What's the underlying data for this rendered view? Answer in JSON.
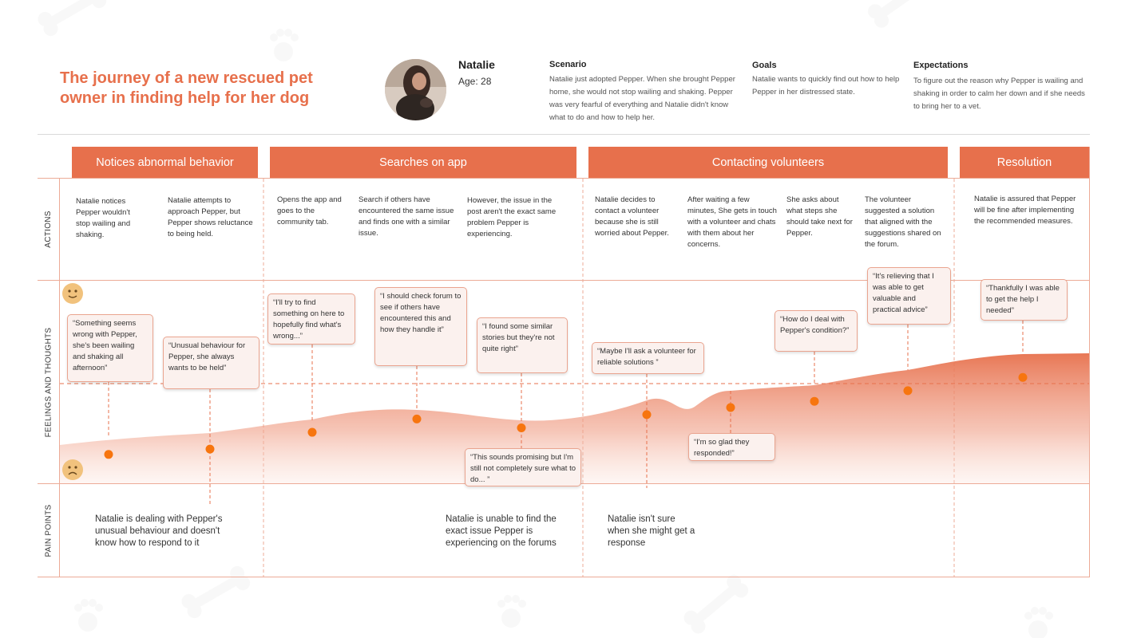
{
  "title": "The journey of a new rescued pet owner in finding help for her dog",
  "persona": {
    "name": "Natalie",
    "age": "Age: 28"
  },
  "scenario": {
    "heading": "Scenario",
    "text": "Natalie just adopted Pepper. When she brought Pepper home, she would not stop wailing and shaking. Pepper was very fearful of everything and Natalie didn't know what to do and how to help her."
  },
  "goals": {
    "heading": "Goals",
    "text": "Natalie wants to quickly find out how to help Pepper in her distressed state."
  },
  "expectations": {
    "heading": "Expectations",
    "text": "To figure out the reason why Pepper is wailing and shaking in order to calm her down and if she needs to bring her to a vet."
  },
  "stages": [
    "Notices abnormal behavior",
    "Searches on app",
    "Contacting volunteers",
    "Resolution"
  ],
  "rows": {
    "actions": "ACTIONS",
    "feelings": "FEELINGS AND THOUGHTS",
    "pain": "PAIN POINTS"
  },
  "actions": [
    "Natalie notices Pepper wouldn't stop wailing and shaking.",
    "Natalie attempts to approach Pepper, but Pepper shows reluctance to being held.",
    "Opens the app and goes to the community tab.",
    "Search if others have encountered the same issue and finds one with a similar issue.",
    "However, the issue in the post aren't the exact same problem Pepper is experiencing.",
    "Natalie decides to contact a volunteer because she is still worried about Pepper.",
    "After waiting a few minutes, She gets in touch with a volunteer and chats with them about her concerns.",
    "She asks about what steps she should take next for Pepper.",
    "The volunteer suggested a solution that aligned with the suggestions shared on the forum.",
    "Natalie is assured that Pepper will be fine after implementing the recommended measures."
  ],
  "thoughts": [
    "“Something seems wrong with Pepper, she's been wailing and shaking all afternoon”",
    "“Unusual behaviour for Pepper, she always wants to be held”",
    "“I'll try to find something on here to hopefully find what's wrong...”",
    "“I should check forum to see if others have encountered this and how they handle it”",
    "“I found some similar stories but they're not quite right”",
    "“This sounds promising but I'm still not completely sure what to do... ”",
    "“Maybe I'll ask a volunteer for reliable solutions ”",
    "“I'm so glad they responded!”",
    "“How do I deal with Pepper's condition?”",
    "“It's relieving that I was able to get valuable and practical advice”",
    "“Thankfully I was able to get the help I needed”"
  ],
  "emotion_levels": [
    0.2,
    0.26,
    0.45,
    0.6,
    0.5,
    0.65,
    0.73,
    0.8,
    0.92,
    1.07
  ],
  "pain_points": [
    "Natalie is dealing with Pepper's unusual behaviour and doesn't know how to respond to it",
    "Natalie is unable to find the exact issue Pepper is experiencing on the forums",
    "Natalie isn't sure when she might get a response"
  ],
  "icons": {
    "happy": "happy-face-icon",
    "sad": "sad-face-icon",
    "background": "bone-and-paw-icon"
  },
  "colors": {
    "accent": "#e7704c",
    "point": "#f7750f",
    "border": "#ecab97"
  }
}
